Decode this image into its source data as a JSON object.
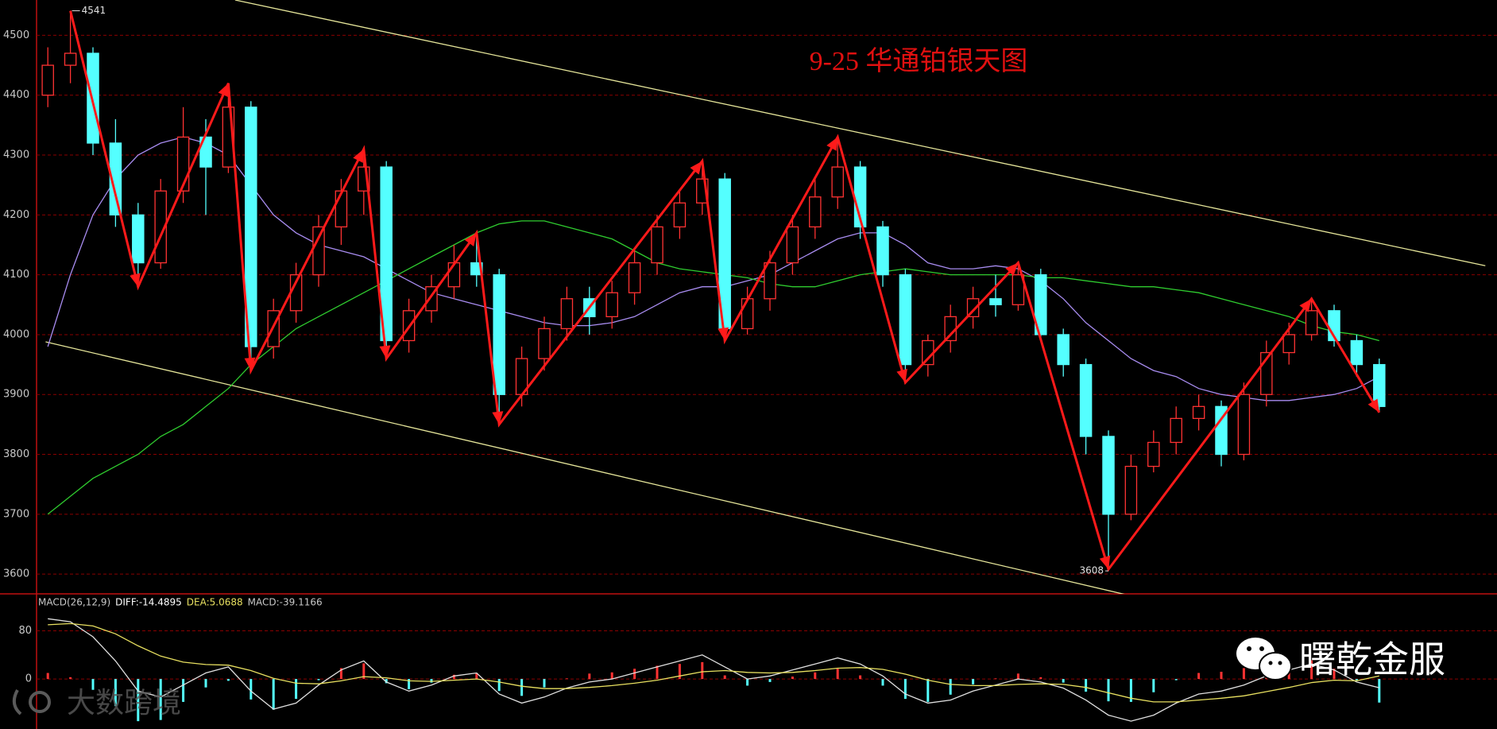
{
  "chart_data": [
    {
      "type": "candlestick",
      "title": "9-25 华通铂银天图",
      "title_color": "#e01010",
      "up_color": "#ff3232",
      "down_color": "#54ffff",
      "ylim": [
        3567,
        4559
      ],
      "yticks": [
        3600,
        3700,
        3800,
        3900,
        4000,
        4100,
        4200,
        4300,
        4400,
        4500
      ],
      "grid": true,
      "open": [
        4400,
        4450,
        4470,
        4320,
        4200,
        4120,
        4240,
        4330,
        4280,
        4380,
        3980,
        4040,
        4100,
        4180,
        4240,
        4280,
        3990,
        4040,
        4080,
        4120,
        4100,
        3900,
        3960,
        4010,
        4060,
        4030,
        4070,
        4120,
        4180,
        4220,
        4260,
        4010,
        4060,
        4120,
        4180,
        4230,
        4280,
        4180,
        4100,
        3950,
        3990,
        4030,
        4060,
        4050,
        4100,
        4000,
        3950,
        3830,
        3700,
        3780,
        3820,
        3860,
        3880,
        3800,
        3900,
        3970,
        4000,
        4040,
        3990,
        3950
      ],
      "high": [
        4480,
        4541,
        4480,
        4360,
        4220,
        4260,
        4380,
        4360,
        4420,
        4390,
        4060,
        4120,
        4200,
        4260,
        4310,
        4290,
        4060,
        4100,
        4150,
        4170,
        4110,
        3980,
        4030,
        4080,
        4080,
        4090,
        4140,
        4200,
        4240,
        4290,
        4270,
        4080,
        4140,
        4200,
        4260,
        4330,
        4290,
        4190,
        4110,
        4000,
        4050,
        4080,
        4100,
        4120,
        4110,
        4010,
        3960,
        3840,
        3800,
        3840,
        3880,
        3900,
        3890,
        3920,
        3990,
        4020,
        4060,
        4050,
        4000,
        3960
      ],
      "low": [
        4380,
        4420,
        4300,
        4180,
        4080,
        4110,
        4220,
        4200,
        4270,
        3940,
        3960,
        4020,
        4080,
        4150,
        4200,
        3960,
        3970,
        4020,
        4060,
        4080,
        3850,
        3880,
        3940,
        3990,
        4000,
        4010,
        4050,
        4100,
        4160,
        4200,
        3990,
        4000,
        4040,
        4100,
        4160,
        4210,
        4160,
        4080,
        3920,
        3930,
        3970,
        4010,
        4030,
        4040,
        3990,
        3930,
        3800,
        3608,
        3690,
        3770,
        3800,
        3840,
        3780,
        3790,
        3880,
        3950,
        3990,
        3980,
        3930,
        3870
      ],
      "close": [
        4450,
        4470,
        4320,
        4200,
        4120,
        4240,
        4330,
        4280,
        4380,
        3980,
        4040,
        4100,
        4180,
        4240,
        4280,
        3990,
        4040,
        4080,
        4120,
        4100,
        3900,
        3960,
        4010,
        4060,
        4030,
        4070,
        4120,
        4180,
        4220,
        4260,
        4010,
        4060,
        4120,
        4180,
        4230,
        4280,
        4180,
        4100,
        3950,
        3990,
        4030,
        4060,
        4050,
        4100,
        4000,
        3950,
        3830,
        3700,
        3780,
        3820,
        3860,
        3880,
        3800,
        3900,
        3970,
        4000,
        4040,
        3990,
        3950,
        3880
      ],
      "ma": [
        {
          "color": "#a88cf0",
          "values": [
            3980,
            4100,
            4200,
            4260,
            4300,
            4320,
            4330,
            4320,
            4300,
            4250,
            4200,
            4170,
            4150,
            4140,
            4130,
            4110,
            4090,
            4070,
            4060,
            4050,
            4040,
            4030,
            4020,
            4015,
            4015,
            4020,
            4030,
            4050,
            4070,
            4080,
            4080,
            4090,
            4100,
            4120,
            4140,
            4160,
            4170,
            4170,
            4150,
            4120,
            4110,
            4110,
            4115,
            4110,
            4090,
            4060,
            4020,
            3990,
            3960,
            3940,
            3930,
            3910,
            3900,
            3895,
            3890,
            3890,
            3895,
            3900,
            3910,
            3930
          ]
        },
        {
          "color": "#2fcc2f",
          "values": [
            3700,
            3730,
            3760,
            3780,
            3800,
            3830,
            3850,
            3880,
            3910,
            3950,
            3980,
            4010,
            4030,
            4050,
            4070,
            4090,
            4110,
            4130,
            4150,
            4170,
            4185,
            4190,
            4190,
            4180,
            4170,
            4160,
            4140,
            4120,
            4110,
            4105,
            4100,
            4095,
            4085,
            4080,
            4080,
            4090,
            4100,
            4105,
            4110,
            4105,
            4100,
            4100,
            4100,
            4100,
            4095,
            4095,
            4090,
            4085,
            4080,
            4080,
            4075,
            4070,
            4060,
            4050,
            4040,
            4030,
            4015,
            4005,
            4000,
            3990
          ]
        }
      ],
      "channels": [
        {
          "color": "#e6e69a",
          "x": [
            8.3,
            63.7
          ],
          "y": [
            4559,
            4115
          ]
        },
        {
          "color": "#e6e69a",
          "x": [
            -0.1,
            50
          ],
          "y": [
            3988,
            3546
          ]
        }
      ],
      "zigzag": {
        "color": "#ff1a1a",
        "x": [
          1,
          4,
          8,
          9,
          14,
          15,
          19,
          20,
          29,
          30,
          35,
          38,
          43,
          47,
          56,
          59
        ],
        "y": [
          4541,
          4080,
          4420,
          3940,
          4310,
          3960,
          4170,
          3850,
          4290,
          3990,
          4330,
          3920,
          4120,
          3608,
          4060,
          3870
        ]
      },
      "annotations": [
        {
          "text": "4541",
          "x": 1,
          "y": 4541
        },
        {
          "text": "3608",
          "x": 47,
          "y": 3608
        }
      ]
    },
    {
      "type": "macd",
      "header": [
        "MACD(26,12,9)",
        "DIFF:-14.4895",
        "DEA:5.0688",
        "MACD:-39.1166"
      ],
      "header_colors": [
        "#c8c8c8",
        "#ffffff",
        "#e8e060",
        "#c8c8c8"
      ],
      "ylim": [
        -83,
        140
      ],
      "yticks": [
        0,
        80
      ],
      "grid": true,
      "up_color": "#ff3232",
      "down_color": "#54ffff",
      "histogram": [
        10,
        3,
        -18,
        -45,
        -70,
        -68,
        -38,
        -14,
        -3,
        -34,
        -51,
        -33,
        -2,
        18,
        26,
        -7,
        -17,
        -6,
        7,
        10,
        -20,
        -28,
        -14,
        1,
        9,
        11,
        17,
        22,
        25,
        28,
        6,
        -11,
        -5,
        4,
        11,
        17,
        6,
        -11,
        -33,
        -38,
        -26,
        -9,
        1,
        9,
        3,
        -6,
        -21,
        -37,
        -38,
        -22,
        -2,
        10,
        12,
        18,
        26,
        29,
        31,
        17,
        -2,
        -39.1166
      ],
      "series": [
        {
          "name": "DIFF",
          "color": "#e0e0e0",
          "values": [
            100,
            95,
            70,
            30,
            -20,
            -30,
            -10,
            10,
            20,
            -20,
            -50,
            -40,
            -10,
            15,
            30,
            -5,
            -20,
            -10,
            5,
            10,
            -25,
            -40,
            -30,
            -15,
            -5,
            0,
            10,
            20,
            30,
            40,
            20,
            0,
            5,
            15,
            25,
            35,
            25,
            5,
            -25,
            -40,
            -35,
            -20,
            -10,
            0,
            -5,
            -15,
            -35,
            -60,
            -70,
            -60,
            -40,
            -25,
            -20,
            -10,
            5,
            15,
            25,
            15,
            -5,
            -14.4895
          ]
        },
        {
          "name": "DEA",
          "color": "#e8e060",
          "values": [
            90,
            92,
            88,
            75,
            55,
            38,
            28,
            24,
            23,
            14,
            1,
            -7,
            -8,
            -3,
            4,
            2,
            -3,
            -4,
            -2,
            0,
            -5,
            -12,
            -16,
            -16,
            -14,
            -11,
            -7,
            -2,
            5,
            12,
            14,
            11,
            10,
            11,
            14,
            18,
            19,
            16,
            8,
            -2,
            -9,
            -11,
            -11,
            -9,
            -8,
            -9,
            -14,
            -23,
            -32,
            -38,
            -38,
            -35,
            -32,
            -28,
            -21,
            -14,
            -6,
            -2,
            -3,
            5.0688
          ]
        }
      ]
    }
  ],
  "watermarks": [
    "曙乾金服",
    "大数跨境"
  ]
}
